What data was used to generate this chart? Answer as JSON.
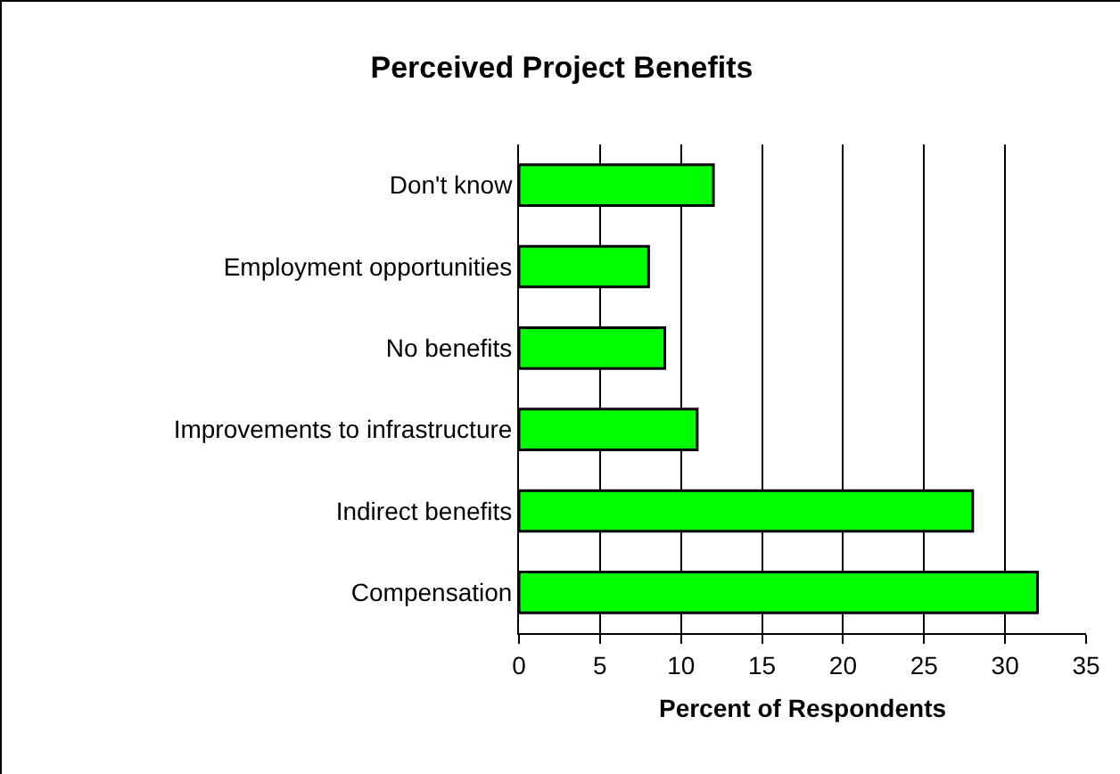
{
  "chart_data": {
    "type": "bar",
    "orientation": "horizontal",
    "title": "Perceived Project Benefits",
    "xlabel": "Percent of Respondents",
    "categories": [
      "Don't know",
      "Employment opportunities",
      "No benefits",
      "Improvements to infrastructure",
      "Indirect benefits",
      "Compensation"
    ],
    "values": [
      12,
      8,
      9,
      11,
      28,
      32
    ],
    "color": "#00ff00",
    "xlim": [
      0,
      35
    ],
    "xticks": [
      0,
      5,
      10,
      15,
      20,
      25,
      30,
      35
    ],
    "grid": "x"
  }
}
